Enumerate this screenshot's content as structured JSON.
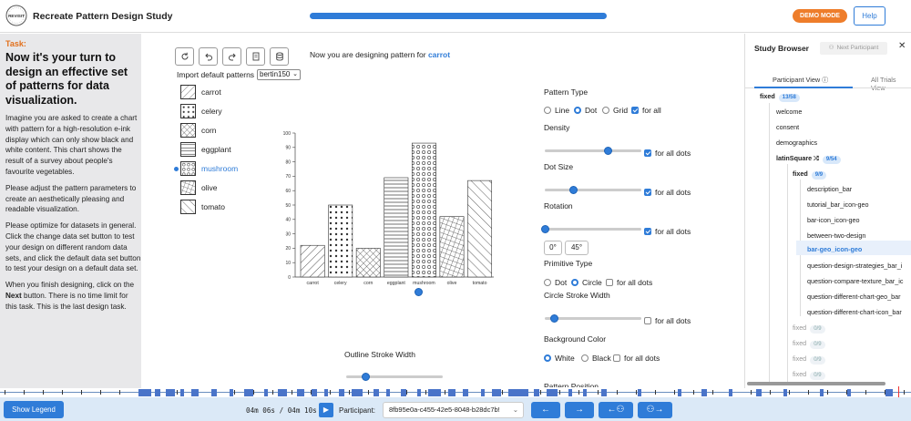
{
  "header": {
    "logo_text": "REVISIT",
    "title": "Recreate Pattern Design Study",
    "progress": 1.0,
    "demo_mode": "DEMO MODE",
    "help": "Help"
  },
  "task": {
    "label": "Task:",
    "heading": "Now it's your turn to design an effective set of patterns for data visualization.",
    "p1": "Imagine you are asked to create a chart with pattern for a high-resolution e-ink display which can only show black and white content. This chart shows the result of a survey about people's favourite vegetables.",
    "p2": "Please adjust the pattern parameters to create an aesthetically pleasing and readable visualization.",
    "p3": "Please optimize for datasets in general. Click the change data set button to test your design on different random data sets, and click the default data set button to test your design on a default data set.",
    "p4_pre": "When you finish designing, click on the ",
    "p4_bold": "Next",
    "p4_post": " button. There is no time limit for this task. This is the last design task."
  },
  "main": {
    "designing_prefix": "Now you are designing pattern for",
    "designing_target": "carrot",
    "import_label": "Import default patterns",
    "import_value": "bertin150",
    "patterns": [
      "carrot",
      "celery",
      "corn",
      "eggplant",
      "mushroom",
      "olive",
      "tomato"
    ],
    "selected_pattern": "mushroom",
    "outline_stroke_width_label": "Outline Stroke Width",
    "outline_stroke_width": 0.2,
    "toolbar_icons": [
      "refresh-icon",
      "undo-icon",
      "redo-icon",
      "document-icon",
      "database-icon"
    ]
  },
  "chart_data": {
    "type": "bar",
    "categories": [
      "carrot",
      "celery",
      "corn",
      "eggplant",
      "mushroom",
      "olive",
      "tomato"
    ],
    "values": [
      22,
      50,
      20,
      69,
      93,
      42,
      67
    ],
    "ylim": [
      0,
      100
    ],
    "yticks": [
      0,
      10,
      20,
      30,
      40,
      50,
      60,
      70,
      80,
      90,
      100
    ],
    "title": "",
    "xlabel": "",
    "ylabel": ""
  },
  "controls": {
    "pattern_type_label": "Pattern Type",
    "pattern_types": [
      "Line",
      "Dot",
      "Grid"
    ],
    "pattern_type_selected": "Dot",
    "for_all": "for all",
    "density_label": "Density",
    "density": 0.66,
    "dot_size_label": "Dot Size",
    "dot_size": 0.3,
    "rotation_label": "Rotation",
    "rotation": 0.0,
    "for_all_dots": "for all dots",
    "angle_0": "0°",
    "angle_45": "45°",
    "primitive_type_label": "Primitive Type",
    "primitive_types": [
      "Dot",
      "Circle"
    ],
    "primitive_selected": "Circle",
    "circle_stroke_width_label": "Circle Stroke Width",
    "circle_stroke_width": 0.1,
    "background_color_label": "Background Color",
    "background_colors": [
      "White",
      "Black"
    ],
    "background_selected": "White",
    "pattern_position_label": "Pattern Position"
  },
  "sidebar": {
    "title": "Study Browser",
    "next_participant": "Next Participant",
    "tab_participant": "Participant View",
    "tab_all": "All Trials View",
    "tree": [
      {
        "label": "fixed",
        "badge": "13/58"
      },
      {
        "label": "welcome"
      },
      {
        "label": "consent"
      },
      {
        "label": "demographics"
      },
      {
        "label": "latinSquare",
        "badge": "9/54"
      },
      {
        "label": "fixed",
        "badge": "9/9"
      },
      {
        "label": "description_bar"
      },
      {
        "label": "tutorial_bar_icon-geo"
      },
      {
        "label": "bar-icon_icon-geo"
      },
      {
        "label": "between-two-design"
      },
      {
        "label": "bar-geo_icon-geo"
      },
      {
        "label": "question-design-strategies_bar_i"
      },
      {
        "label": "question-compare-texture_bar_ic"
      },
      {
        "label": "question-different-chart-geo_bar"
      },
      {
        "label": "question-different-chart-icon_bar"
      },
      {
        "label": "fixed",
        "badge": "0/9"
      },
      {
        "label": "fixed",
        "badge": "0/9"
      },
      {
        "label": "fixed",
        "badge": "0/9"
      },
      {
        "label": "fixed",
        "badge": "0/9"
      }
    ]
  },
  "footer": {
    "show_legend": "Show Legend",
    "timer": "04m 06s / 04m 10s",
    "participant_label": "Participant:",
    "participant_id": "8fb95e0a-c455-42e5-8048-b28dc7b!"
  },
  "colors": {
    "accent": "#2f7cd8",
    "demo": "#ee7d2b",
    "task_label": "#e2701c"
  }
}
